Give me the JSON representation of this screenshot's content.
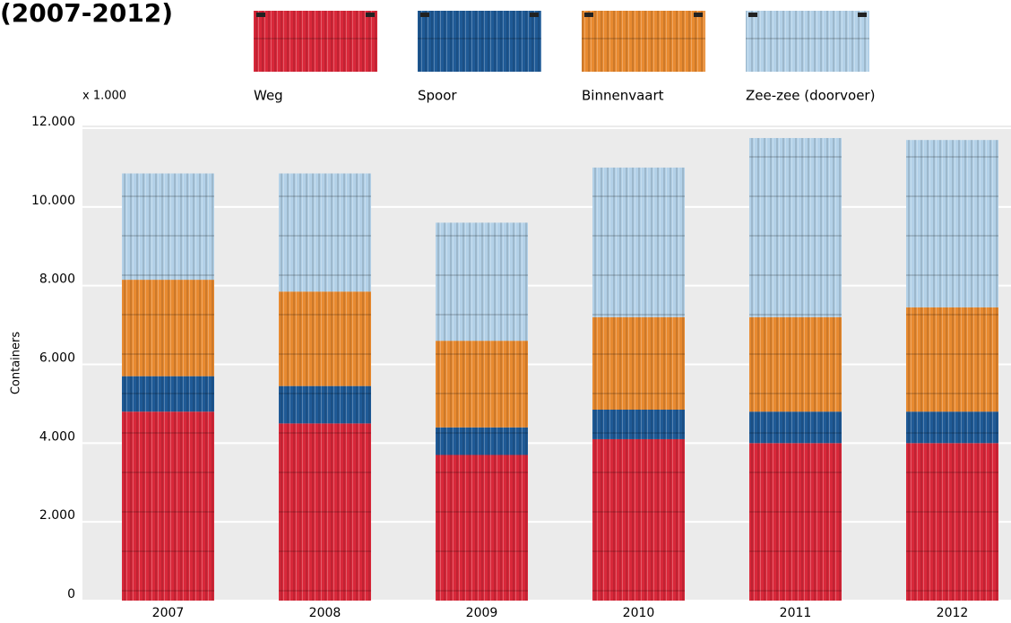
{
  "chart_data": {
    "type": "stacked_bar",
    "title": "(2007-2012)",
    "unit_label": "x 1.000",
    "y_label": "Containers",
    "categories": [
      "2007",
      "2008",
      "2009",
      "2010",
      "2011",
      "2012"
    ],
    "series": [
      {
        "name": "Weg",
        "color": "#d9283a",
        "values": [
          4800,
          4500,
          3700,
          4100,
          4000,
          4000
        ]
      },
      {
        "name": "Spoor",
        "color": "#1f5a96",
        "values": [
          900,
          950,
          700,
          750,
          800,
          800
        ]
      },
      {
        "name": "Binnenvaart",
        "color": "#e88a30",
        "values": [
          2450,
          2400,
          2200,
          2350,
          2400,
          2650
        ]
      },
      {
        "name": "Zee-zee (doorvoer)",
        "color": "#b3d1e8",
        "values": [
          2700,
          3000,
          3000,
          3800,
          4550,
          4250
        ]
      }
    ],
    "ylim": [
      0,
      12000
    ],
    "yticks": [
      0,
      {
        "value": 2000,
        "label": "2.000"
      },
      {
        "value": 4000,
        "label": "4.000"
      },
      {
        "value": 6000,
        "label": "6.000"
      },
      {
        "value": 8000,
        "label": "8.000"
      },
      {
        "value": 10000,
        "label": "10.000"
      },
      {
        "value": 12000,
        "label": "12.000"
      }
    ],
    "grid": true
  }
}
